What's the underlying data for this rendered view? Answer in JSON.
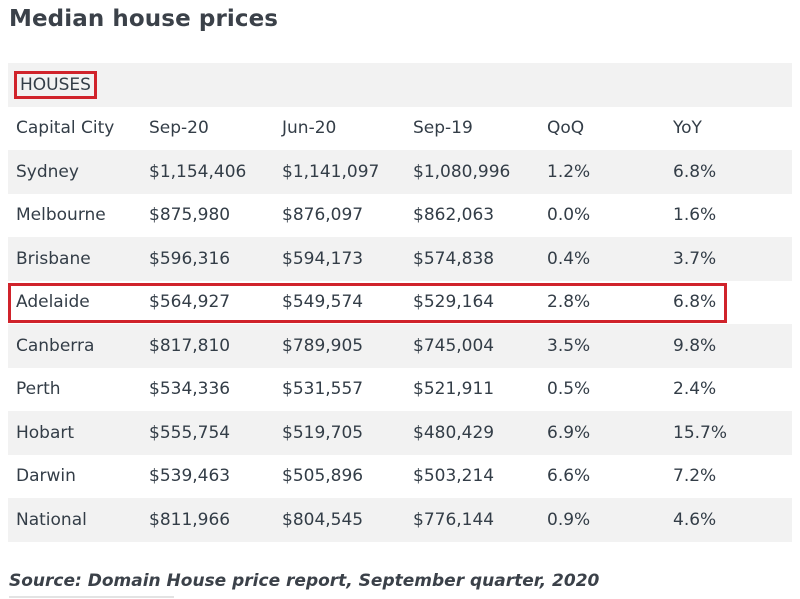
{
  "page": {
    "title": "Median house prices",
    "source": "Source: Domain House price report, September quarter, 2020"
  },
  "chart_data": {
    "type": "table",
    "title": "Median house prices",
    "caption": "HOUSES",
    "columns": [
      "Capital City",
      "Sep-20",
      "Jun-20",
      "Sep-19",
      "QoQ",
      "YoY"
    ],
    "rows": [
      [
        "Sydney",
        "$1,154,406",
        "$1,141,097",
        "$1,080,996",
        "1.2%",
        "6.8%"
      ],
      [
        "Melbourne",
        "$875,980",
        "$876,097",
        "$862,063",
        "0.0%",
        "1.6%"
      ],
      [
        "Brisbane",
        "$596,316",
        "$594,173",
        "$574,838",
        "0.4%",
        "3.7%"
      ],
      [
        "Adelaide",
        "$564,927",
        "$549,574",
        "$529,164",
        "2.8%",
        "6.8%"
      ],
      [
        "Canberra",
        "$817,810",
        "$789,905",
        "$745,004",
        "3.5%",
        "9.8%"
      ],
      [
        "Perth",
        "$534,336",
        "$531,557",
        "$521,911",
        "0.5%",
        "2.4%"
      ],
      [
        "Hobart",
        "$555,754",
        "$519,705",
        "$480,429",
        "6.9%",
        "15.7%"
      ],
      [
        "Darwin",
        "$539,463",
        "$505,896",
        "$503,214",
        "6.6%",
        "7.2%"
      ],
      [
        "National",
        "$811,966",
        "$804,545",
        "$776,144",
        "0.9%",
        "4.6%"
      ]
    ],
    "highlighted_row": "Adelaide",
    "highlight_color": "#d0232b"
  }
}
